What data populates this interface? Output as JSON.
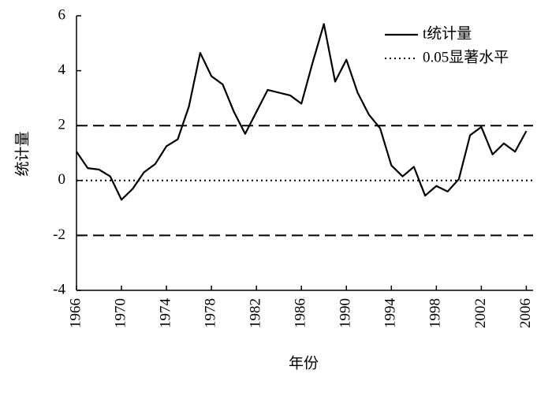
{
  "chart_data": {
    "type": "line",
    "x": [
      1966,
      1967,
      1968,
      1969,
      1970,
      1971,
      1972,
      1973,
      1974,
      1975,
      1976,
      1977,
      1978,
      1979,
      1980,
      1981,
      1982,
      1983,
      1984,
      1985,
      1986,
      1987,
      1988,
      1989,
      1990,
      1991,
      1992,
      1993,
      1994,
      1995,
      1996,
      1997,
      1998,
      1999,
      2000,
      2001,
      2002,
      2003,
      2004,
      2005,
      2006
    ],
    "series": [
      {
        "name": "t统计量",
        "color": "#000000",
        "values": [
          1.05,
          0.45,
          0.4,
          0.15,
          -0.7,
          -0.3,
          0.3,
          0.6,
          1.25,
          1.5,
          2.7,
          4.65,
          3.8,
          3.5,
          2.5,
          1.7,
          2.5,
          3.3,
          3.2,
          3.1,
          2.8,
          4.3,
          5.7,
          3.6,
          4.4,
          3.2,
          2.4,
          1.9,
          0.55,
          0.15,
          0.5,
          -0.55,
          -0.2,
          -0.4,
          0.05,
          1.65,
          1.95,
          0.95,
          1.35,
          1.05,
          1.8
        ]
      }
    ],
    "reference_lines": [
      {
        "y": 2,
        "style": "dashed"
      },
      {
        "y": 0,
        "style": "dotted",
        "name": "0.05显著水平"
      },
      {
        "y": -2,
        "style": "dashed"
      }
    ],
    "xlabel": "年份",
    "ylabel": "统计量",
    "xlim": [
      1966,
      2006.6
    ],
    "ylim": [
      -4,
      6
    ],
    "xticks": [
      1966,
      1970,
      1974,
      1978,
      1982,
      1986,
      1990,
      1994,
      1998,
      2002,
      2006
    ],
    "yticks": [
      -4,
      -2,
      0,
      2,
      4,
      6
    ],
    "legend": "upper right"
  }
}
